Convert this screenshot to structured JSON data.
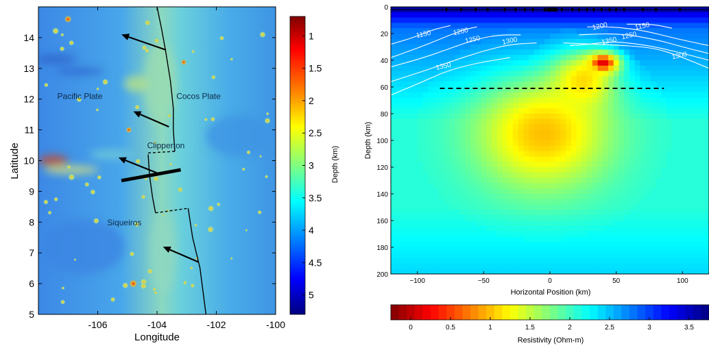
{
  "chart_data": [
    {
      "type": "heatmap",
      "title": "",
      "xlabel": "Longitude",
      "ylabel": "Latitude",
      "xlim": [
        -108,
        -100
      ],
      "ylim": [
        5,
        15
      ],
      "x_ticks": [
        "-106",
        "-104",
        "-102",
        "-100"
      ],
      "y_ticks": [
        "5",
        "6",
        "7",
        "8",
        "9",
        "10",
        "11",
        "12",
        "13",
        "14"
      ],
      "colorbar": {
        "label": "Depth (km)",
        "range": [
          0.7,
          5.3
        ],
        "ticks": [
          "1",
          "1.5",
          "2",
          "2.5",
          "3",
          "3.5",
          "4",
          "4.5",
          "5"
        ],
        "colormap": "jet reversed (dark red shallow to dark blue deep)"
      },
      "annotations": [
        {
          "text": "Pacific Plate",
          "lon": -106.6,
          "lat": 12.0
        },
        {
          "text": "Cocos Plate",
          "lon": -102.6,
          "lat": 12.0
        },
        {
          "text": "Clipperton",
          "lon": -103.7,
          "lat": 10.4
        },
        {
          "text": "Siqueiros",
          "lon": -105.1,
          "lat": 7.9
        }
      ],
      "ridge_axis": [
        [
          -104.0,
          15.0
        ],
        [
          -103.85,
          14.3
        ],
        [
          -103.7,
          13.5
        ],
        [
          -103.55,
          12.6
        ],
        [
          -103.45,
          11.7
        ],
        [
          -103.45,
          11.0
        ],
        [
          -103.4,
          10.3
        ]
      ],
      "ridge_axis_mid": [
        [
          -104.3,
          10.2
        ],
        [
          -104.25,
          9.5
        ],
        [
          -104.15,
          8.8
        ],
        [
          -104.05,
          8.3
        ]
      ],
      "ridge_axis_south": [
        [
          -102.95,
          8.45
        ],
        [
          -102.8,
          7.5
        ],
        [
          -102.55,
          6.5
        ],
        [
          -102.35,
          5.0
        ]
      ],
      "transform_faults": [
        {
          "name": "Clipperton",
          "from": [
            -104.3,
            10.25
          ],
          "to": [
            -103.4,
            10.3
          ]
        },
        {
          "name": "Siqueiros",
          "from": [
            -104.05,
            8.3
          ],
          "to": [
            -102.95,
            8.45
          ]
        }
      ],
      "plate_motion_arrows": [
        {
          "from": [
            -103.7,
            13.6
          ],
          "to": [
            -105.2,
            14.1
          ]
        },
        {
          "from": [
            -103.6,
            11.1
          ],
          "to": [
            -104.8,
            11.6
          ]
        },
        {
          "from": [
            -104.0,
            9.6
          ],
          "to": [
            -105.3,
            10.1
          ]
        },
        {
          "from": [
            -102.6,
            6.7
          ],
          "to": [
            -103.8,
            7.2
          ]
        }
      ],
      "profile_line": {
        "from": [
          -105.2,
          9.35
        ],
        "to": [
          -103.2,
          9.7
        ]
      }
    },
    {
      "type": "heatmap",
      "title": "",
      "xlabel": "Horizontal Position (km)",
      "ylabel": "Depth (km)",
      "xlim": [
        -120,
        120
      ],
      "ylim": [
        0,
        200
      ],
      "y_inverted": true,
      "x_ticks": [
        "-100",
        "-50",
        "0",
        "50",
        "100"
      ],
      "y_ticks": [
        "0",
        "20",
        "40",
        "60",
        "80",
        "100",
        "120",
        "140",
        "160",
        "180",
        "200"
      ],
      "colorbar": {
        "label": "Resistivity (Ohm-m)",
        "range": [
          -0.25,
          3.75
        ],
        "ticks": [
          "0",
          "0.5",
          "1",
          "1.5",
          "2",
          "2.5",
          "3",
          "3.5"
        ],
        "colormap": "jet reversed (dark red low to dark blue high)",
        "orientation": "horizontal"
      },
      "contour_labels": [
        {
          "text": "1150",
          "x": -95,
          "y": 22
        },
        {
          "text": "1200",
          "x": -67,
          "y": 20
        },
        {
          "text": "1250",
          "x": -58,
          "y": 26
        },
        {
          "text": "1300",
          "x": -30,
          "y": 27
        },
        {
          "text": "1350",
          "x": -80,
          "y": 46
        },
        {
          "text": "1200",
          "x": 38,
          "y": 16
        },
        {
          "text": "1150",
          "x": 70,
          "y": 16
        },
        {
          "text": "1350",
          "x": 45,
          "y": 27
        },
        {
          "text": "1250",
          "x": 60,
          "y": 23
        },
        {
          "text": "1300",
          "x": 98,
          "y": 38
        }
      ],
      "isotherms": [
        {
          "value": 1150,
          "left": [
            [
              -120,
              28
            ],
            [
              -103,
              23
            ],
            [
              -88,
              17
            ],
            [
              -75,
              14
            ]
          ],
          "right": [
            [
              58,
              13
            ],
            [
              78,
              13
            ],
            [
              92,
              16
            ]
          ]
        },
        {
          "value": 1200,
          "left": [
            [
              -120,
              38
            ],
            [
              -100,
              31
            ],
            [
              -80,
              23
            ],
            [
              -65,
              17
            ],
            [
              -55,
              15
            ]
          ],
          "right": [
            [
              28,
              15
            ],
            [
              50,
              15
            ],
            [
              72,
              18
            ],
            [
              92,
              23
            ],
            [
              110,
              27
            ],
            [
              120,
              29
            ]
          ]
        },
        {
          "value": 1250,
          "left": [
            [
              -120,
              45
            ],
            [
              -95,
              38
            ],
            [
              -75,
              31
            ],
            [
              -55,
              24
            ],
            [
              -38,
              21
            ],
            [
              -22,
              21
            ]
          ],
          "right": [
            [
              22,
              21
            ],
            [
              42,
              20
            ],
            [
              60,
              21
            ],
            [
              82,
              25
            ],
            [
              100,
              30
            ],
            [
              120,
              35
            ]
          ]
        },
        {
          "value": 1300,
          "left": [
            [
              -120,
              56
            ],
            [
              -95,
              48
            ],
            [
              -72,
              40
            ],
            [
              -50,
              33
            ],
            [
              -30,
              28
            ],
            [
              -10,
              27
            ]
          ],
          "right": [
            [
              10,
              27
            ],
            [
              35,
              28
            ],
            [
              58,
              29
            ],
            [
              80,
              31
            ],
            [
              98,
              37
            ],
            [
              120,
              46
            ]
          ]
        },
        {
          "value": 1350,
          "left": [
            [
              -120,
              66
            ],
            [
              -98,
              57
            ],
            [
              -78,
              48
            ],
            [
              -55,
              42
            ],
            [
              -30,
              38
            ]
          ],
          "right": [
            [
              15,
              29
            ],
            [
              30,
              28
            ],
            [
              45,
              26
            ],
            [
              60,
              27
            ],
            [
              80,
              30
            ],
            [
              105,
              36
            ],
            [
              120,
              40
            ]
          ]
        }
      ],
      "dashed_line": {
        "x": [
          -83,
          86
        ],
        "depth": 61
      },
      "stations_x": [
        -78,
        -67,
        -56,
        -47,
        -34,
        -26,
        -19,
        -13,
        -4,
        -2,
        -1,
        0,
        1,
        2,
        3,
        4,
        5,
        9,
        17,
        22,
        28,
        33,
        39,
        45,
        50,
        56,
        70,
        80,
        98
      ],
      "anomalies": [
        {
          "name": "shallow conductor",
          "center": [
            40,
            42
          ],
          "radius": [
            14,
            9
          ],
          "resistivity": 0.1
        },
        {
          "name": "conductive body",
          "center": [
            -5,
            95
          ],
          "radius": [
            60,
            50
          ],
          "resistivity": 1.0
        },
        {
          "name": "conductor upper lobe",
          "center": [
            25,
            55
          ],
          "radius": [
            28,
            25
          ],
          "resistivity": 1.1
        }
      ]
    }
  ]
}
